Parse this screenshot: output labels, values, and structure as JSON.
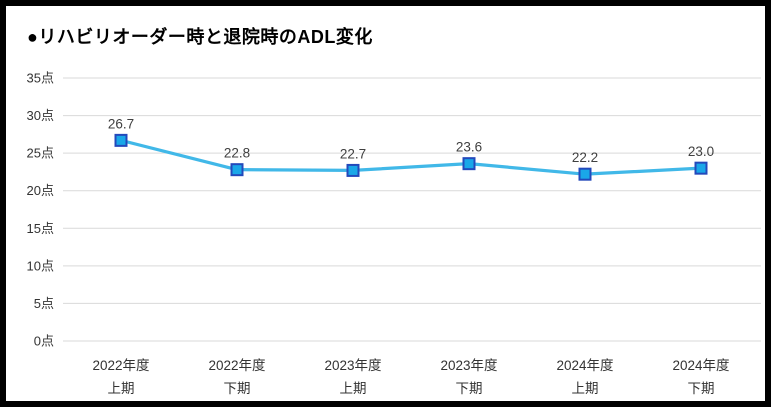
{
  "chart": {
    "title": "●リハビリオーダー時と退院時のADL変化"
  },
  "chart_data": {
    "type": "line",
    "title": "●リハビリオーダー時と退院時のADL変化",
    "categories": [
      [
        "2022年度",
        "上期"
      ],
      [
        "2022年度",
        "下期"
      ],
      [
        "2023年度",
        "上期"
      ],
      [
        "2023年度",
        "下期"
      ],
      [
        "2024年度",
        "上期"
      ],
      [
        "2024年度",
        "下期"
      ]
    ],
    "series": [
      {
        "name": "ADL変化",
        "values": [
          26.7,
          22.8,
          22.7,
          23.6,
          22.2,
          23.0
        ]
      }
    ],
    "data_labels": [
      "26.7",
      "22.8",
      "22.7",
      "23.6",
      "22.2",
      "23.0"
    ],
    "y_ticks": [
      {
        "value": 0,
        "label": "0点"
      },
      {
        "value": 5,
        "label": "5点"
      },
      {
        "value": 10,
        "label": "10点"
      },
      {
        "value": 15,
        "label": "15点"
      },
      {
        "value": 20,
        "label": "20点"
      },
      {
        "value": 25,
        "label": "25点"
      },
      {
        "value": 30,
        "label": "30点"
      },
      {
        "value": 35,
        "label": "35点"
      }
    ],
    "ylim": [
      0,
      35
    ],
    "grid": true,
    "legend": "none",
    "colors": {
      "line": "#41b8e8",
      "marker_fill": "#1aa7e8",
      "marker_border": "#2349bb",
      "gridline": "#d9d9d9",
      "tick_text": "#333333",
      "data_label_text": "#404040",
      "frame_border": "#000000"
    }
  }
}
